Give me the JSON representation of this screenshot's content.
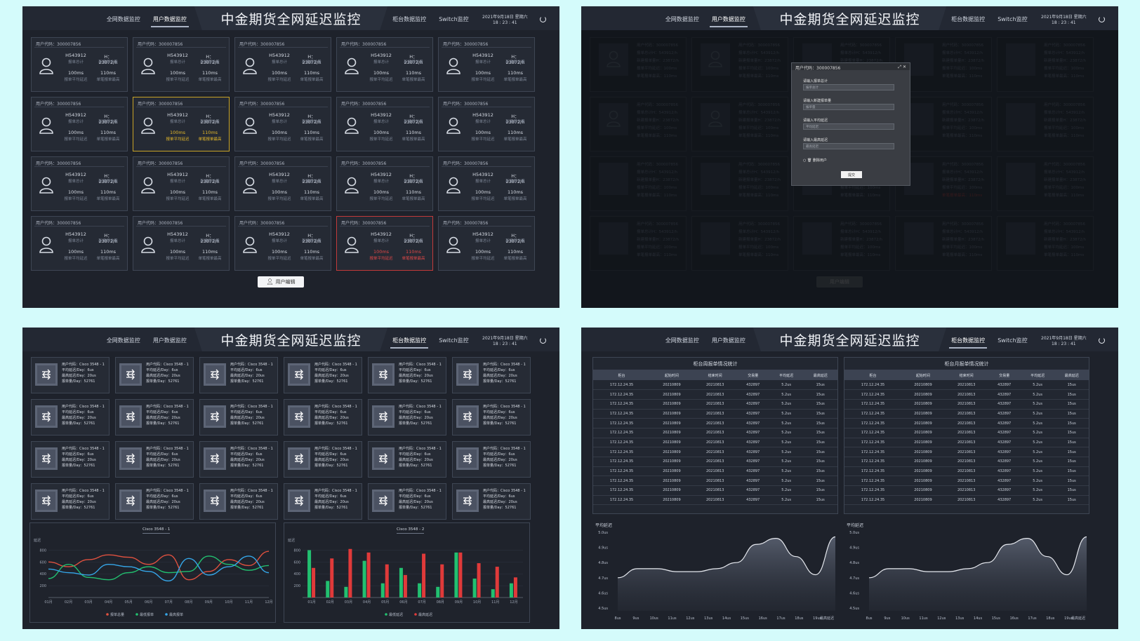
{
  "header": {
    "title": "中金期货全网延迟监控",
    "nav_left": [
      "全网数据监控",
      "用户数据监控"
    ],
    "nav_right": [
      "柜台数据监控",
      "Switch监控"
    ],
    "date": "2021年9月18日  星期六",
    "time": "18 : 23 : 41"
  },
  "panel1": {
    "active_nav": "用户数据监控",
    "edit_button": "用户编辑",
    "cards": {
      "code_label": "用户代码：300007856",
      "order_total": "H543912",
      "order_total_label": "报单总计",
      "new_order": "H：23872/h",
      "new_order_label": "新建报单量",
      "avg_latency": "100ms",
      "avg_latency_label": "报单平均延迟",
      "max_latency": "110ms",
      "max_latency_label": "单笔报单最高"
    },
    "highlight": {
      "yellow_index": 6,
      "red_index": 18,
      "yellow_color": "#c8a427",
      "red_color": "#c23a3a"
    }
  },
  "panel2": {
    "active_nav": "用户数据监控",
    "bg_lines": [
      "用户代码：300007856",
      "报单总计H：543912/h",
      "新建报单量H：23872/h",
      "报单平均延迟：100ms",
      "单笔报单最高：110ms"
    ],
    "modal": {
      "title": "用户代码：300007856",
      "fields": [
        {
          "label": "请输入报单总计",
          "placeholder": "报单总计"
        },
        {
          "label": "请输入新建报单量",
          "placeholder": "报单量"
        },
        {
          "label": "请输入平均延迟",
          "placeholder": "平均延迟"
        },
        {
          "label": "请输入最高延迟",
          "placeholder": "最高延迟"
        }
      ],
      "delete_label": "删除用户",
      "submit": "提交"
    },
    "edit_button": "用户编辑"
  },
  "panel3": {
    "active_nav": "柜台数据监控",
    "switch_card": {
      "line1": "用户代码：Cisco 3548 - 1",
      "line2": "平均延迟/Day：6us",
      "line3": "最高延迟/Day：20us",
      "line4": "报单量/Day：52761"
    },
    "line_chart": {
      "title": "Cisco 3548 - 1",
      "ylabel": "延迟",
      "yticks": [
        "800",
        "600",
        "400",
        "200"
      ],
      "xticks": [
        "01月",
        "02月",
        "03月",
        "04月",
        "05月",
        "06月",
        "07月",
        "08月",
        "09月",
        "10月",
        "11月",
        "12月"
      ],
      "legend": [
        "报单总量",
        "最低报单",
        "最高报单"
      ],
      "colors": [
        "#e0513f",
        "#22c070",
        "#35a6e8"
      ]
    },
    "bar_chart": {
      "title": "Cisco 3548 - 2",
      "ylabel": "延迟",
      "yticks": [
        "800",
        "600",
        "400",
        "200"
      ],
      "xticks": [
        "01月",
        "02月",
        "03月",
        "04月",
        "05月",
        "06月",
        "07月",
        "08月",
        "09月",
        "10月",
        "11月",
        "12月"
      ],
      "legend": [
        "最低延迟",
        "最高延迟"
      ],
      "colors": [
        "#22c070",
        "#e03a3a"
      ]
    }
  },
  "panel4": {
    "active_nav": "柜台数据监控",
    "tables": [
      {
        "title": "柜台周报单情况统计"
      },
      {
        "title": "柜台月报单情况统计"
      }
    ],
    "columns": [
      "柜台",
      "起始时间",
      "结束时间",
      "交易量",
      "平均延迟",
      "最高延迟"
    ],
    "row": [
      "172.12.24.35",
      "20210809",
      "20210813",
      "432897",
      "5.2us",
      "15us"
    ],
    "row_count": 13,
    "area_chart": {
      "ylabel": "平均延迟",
      "yticks": [
        "5.0us",
        "4.9us",
        "4.8us",
        "4.7us",
        "4.6us",
        "4.5us"
      ],
      "xticks": [
        "8us",
        "9us",
        "10us",
        "11us",
        "12us",
        "13us",
        "14us",
        "15us",
        "16us",
        "17us",
        "18us",
        "19us",
        "最高延迟"
      ]
    }
  },
  "chart_data": [
    {
      "type": "line",
      "title": "Cisco 3548 - 1",
      "ylabel": "延迟",
      "categories": [
        "01月",
        "02月",
        "03月",
        "04月",
        "05月",
        "06月",
        "07月",
        "08月",
        "09月",
        "10月",
        "11月",
        "12月"
      ],
      "ylim": [
        0,
        900
      ],
      "series": [
        {
          "name": "报单总量",
          "values": [
            600,
            520,
            640,
            720,
            680,
            560,
            720,
            300,
            440,
            640,
            540,
            780
          ]
        },
        {
          "name": "最低报单",
          "values": [
            320,
            560,
            340,
            300,
            420,
            520,
            420,
            440,
            700,
            560,
            460,
            540
          ]
        },
        {
          "name": "最高报单",
          "values": [
            480,
            420,
            380,
            560,
            520,
            440,
            280,
            660,
            380,
            520,
            700,
            420
          ]
        }
      ]
    },
    {
      "type": "bar",
      "title": "Cisco 3548 - 2",
      "ylabel": "延迟",
      "categories": [
        "01月",
        "02月",
        "03月",
        "04月",
        "05月",
        "06月",
        "07月",
        "08月",
        "09月",
        "10月",
        "11月",
        "12月"
      ],
      "ylim": [
        0,
        900
      ],
      "series": [
        {
          "name": "最低延迟",
          "values": [
            800,
            280,
            180,
            620,
            240,
            500,
            240,
            180,
            760,
            320,
            140,
            240
          ]
        },
        {
          "name": "最高延迟",
          "values": [
            500,
            660,
            820,
            760,
            560,
            380,
            740,
            560,
            760,
            580,
            520,
            340
          ]
        }
      ]
    },
    {
      "type": "area",
      "ylabel": "平均延迟",
      "categories": [
        "8us",
        "9us",
        "10us",
        "11us",
        "12us",
        "13us",
        "14us",
        "15us",
        "16us",
        "17us",
        "18us",
        "19us"
      ],
      "ylim": [
        4.5,
        5.0
      ],
      "values": [
        4.7,
        4.76,
        4.76,
        4.74,
        4.74,
        4.76,
        4.8,
        4.92,
        4.96,
        4.84,
        4.72,
        4.97
      ]
    }
  ]
}
